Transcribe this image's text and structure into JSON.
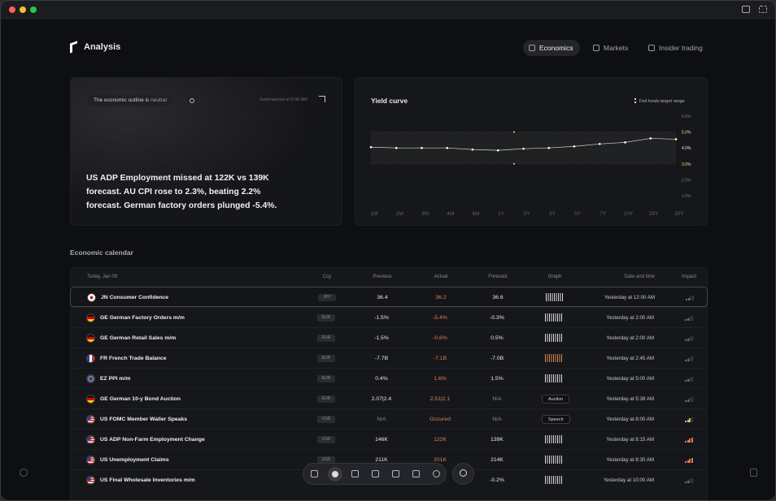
{
  "header": {
    "title": "Analysis",
    "tabs": [
      "Economics",
      "Markets",
      "Insider trading"
    ],
    "active_tab": 0
  },
  "summary": {
    "outline_label": "The economic outline is",
    "sentiment": "neutral",
    "timestamp": "Summarized at 9:30 AM",
    "text": "US ADP Employment missed at 122K vs 139K forecast. AU CPI rose to 2.3%, beating 2.2% forecast. German factory orders plunged -5.4%."
  },
  "yield_curve": {
    "type": "line",
    "title": "Yield curve",
    "legend": "Fed funds target range",
    "color": "#ffffff",
    "categories": [
      "1M",
      "2M",
      "3M",
      "4M",
      "6M",
      "1Y",
      "2Y",
      "3Y",
      "5Y",
      "7Y",
      "10Y",
      "20Y",
      "30Y"
    ],
    "values": [
      4.05,
      4.0,
      4.0,
      4.0,
      3.9,
      3.85,
      3.95,
      4.0,
      4.1,
      4.25,
      4.35,
      4.6,
      4.55
    ],
    "fed_funds_range": [
      3,
      5
    ],
    "ylim": [
      1,
      6
    ],
    "yticks": [
      {
        "value": 6,
        "label": "6.0%"
      },
      {
        "value": 5,
        "label": "5.0%"
      },
      {
        "value": 4,
        "label": "4.0%"
      },
      {
        "value": 3,
        "label": "3.0%"
      },
      {
        "value": 2,
        "label": "2.0%"
      },
      {
        "value": 1,
        "label": "1.0%"
      }
    ]
  },
  "calendar": {
    "title": "Economic calendar",
    "columns": [
      "Today, Jan 09",
      "Ccy",
      "Previous",
      "Actual",
      "Forecast",
      "Graph",
      "Date and time",
      "Impact"
    ],
    "rows": [
      {
        "flag": "jp",
        "name": "JN Consumer Confidence",
        "ccy": "JPY",
        "previous": "36.4",
        "actual": "36.2",
        "forecast": "36.6",
        "time": "Yesterday at 12:00 AM",
        "impact": 1
      },
      {
        "flag": "de",
        "name": "GE German Factory Orders m/m",
        "ccy": "EUR",
        "previous": "-1.5%",
        "actual": "-5.4%",
        "forecast": "-0.3%",
        "time": "Yesterday at 2:00 AM",
        "impact": 1
      },
      {
        "flag": "de",
        "name": "GE German Retail Sales m/m",
        "ccy": "EUR",
        "previous": "-1.5%",
        "actual": "-0.6%",
        "forecast": "0.5%",
        "time": "Yesterday at 2:00 AM",
        "impact": 1
      },
      {
        "flag": "fr",
        "name": "FR French Trade Balance",
        "ccy": "EUR",
        "previous": "-7.7B",
        "actual": "-7.1B",
        "forecast": "-7.0B",
        "time": "Yesterday at 2:45 AM",
        "impact": 1
      },
      {
        "flag": "eu",
        "name": "EZ PPI m/m",
        "ccy": "EUR",
        "previous": "0.4%",
        "actual": "1.6%",
        "forecast": "1.5%",
        "time": "Yesterday at 5:00 AM",
        "impact": 1
      },
      {
        "flag": "de",
        "name": "GE German 10-y Bond Auction",
        "ccy": "EUR",
        "previous": "2.07|2.4",
        "actual": "2.51|2.1",
        "forecast": "N/A",
        "graph": "Auction",
        "time": "Yesterday at 5:38 AM",
        "impact": 1
      },
      {
        "flag": "us",
        "name": "US FOMC Member Waller Speaks",
        "ccy": "USD",
        "previous": "N/A",
        "actual": "Occured",
        "forecast": "N/A",
        "graph": "Speech",
        "time": "Yesterday at 8:00 AM",
        "impact": 2
      },
      {
        "flag": "us",
        "name": "US ADP Non-Farm Employment Change",
        "ccy": "USD",
        "previous": "146K",
        "actual": "122K",
        "forecast": "139K",
        "time": "Yesterday at 8:15 AM",
        "impact": 3
      },
      {
        "flag": "us",
        "name": "US Unemployment Claims",
        "ccy": "USD",
        "previous": "211K",
        "actual": "201K",
        "forecast": "214K",
        "time": "Yesterday at 8:30 AM",
        "impact": 3
      },
      {
        "flag": "us",
        "name": "US Final Wholesale Inventories m/m",
        "ccy": "USD",
        "forecast": "-0.2%",
        "time": "Yesterday at 10:00 AM",
        "impact": 1
      }
    ]
  }
}
